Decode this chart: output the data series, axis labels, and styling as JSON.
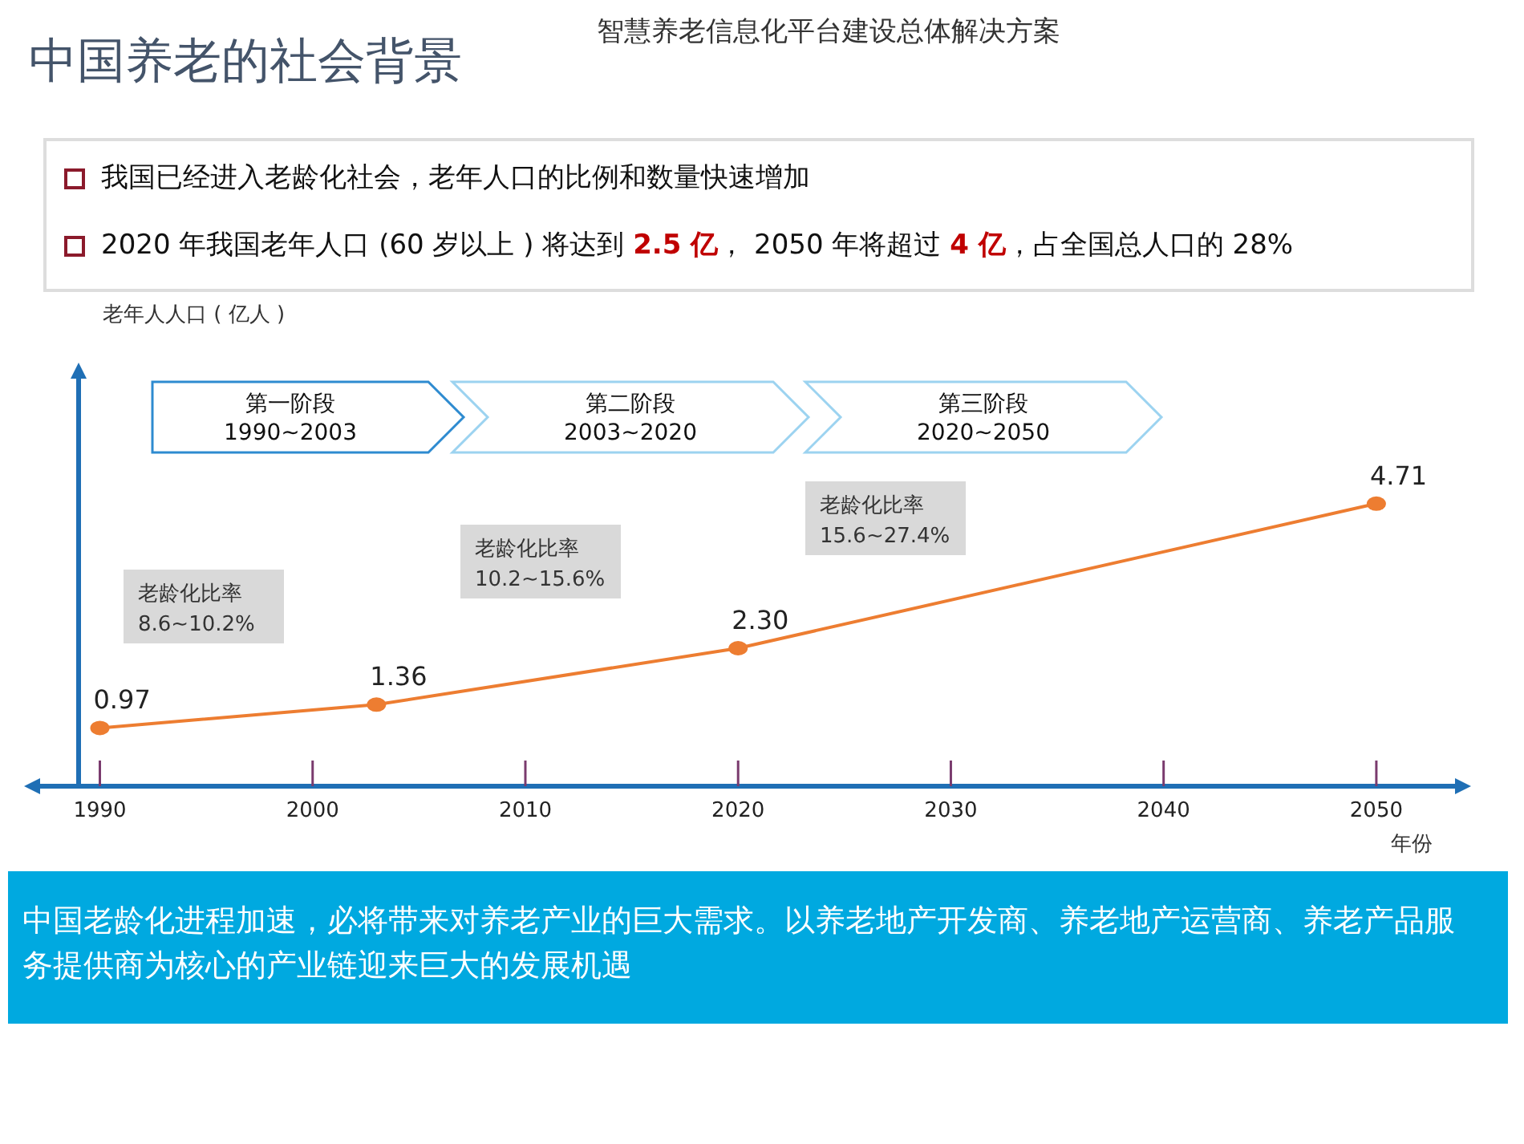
{
  "chart_data": {
    "type": "line",
    "title": "中国养老的社会背景",
    "subtitle": "智慧养老信息化平台建设总体解决方案",
    "ylabel": "老年人人口 ( 亿人 )",
    "xlabel": "年份",
    "x": [
      1990,
      2003,
      2020,
      2050
    ],
    "series": [
      {
        "color": "#ed7d31",
        "values": [
          0.97,
          1.36,
          2.3,
          4.71
        ],
        "value_labels": [
          "0.97",
          "1.36",
          "2.30",
          "4.71"
        ]
      }
    ],
    "xlim": [
      1989,
      2054
    ],
    "ylim": [
      0,
      6.9
    ],
    "xticks": [
      1990,
      2000,
      2010,
      2020,
      2030,
      2040,
      2050
    ],
    "tick_labels": "x",
    "marker": "circle",
    "line_style": "solid",
    "annotations": [
      "我国已经进入老龄化社会，老年人口的比例和数量快速增加",
      "2020 年我国老年人口 (60 岁以上 ) 将达到 **2.5 亿**， 2050 年将超过 **4 亿**，占全国总人口的 28%",
      "第一阶段 1990~2003",
      "第二阶段 2003~2020",
      "第三阶段 2020~2050",
      "老龄化比率 8.6~10.2%",
      "老龄化比率 10.2~15.6%",
      "老龄化比率 15.6~27.4%",
      "中国老龄化进程加速，必将带来对养老产业的巨大需求。以养老地产开发商、养老地产运营商、养老产品服务提供商为核心的产业链迎来巨大的发展机遇"
    ]
  }
}
